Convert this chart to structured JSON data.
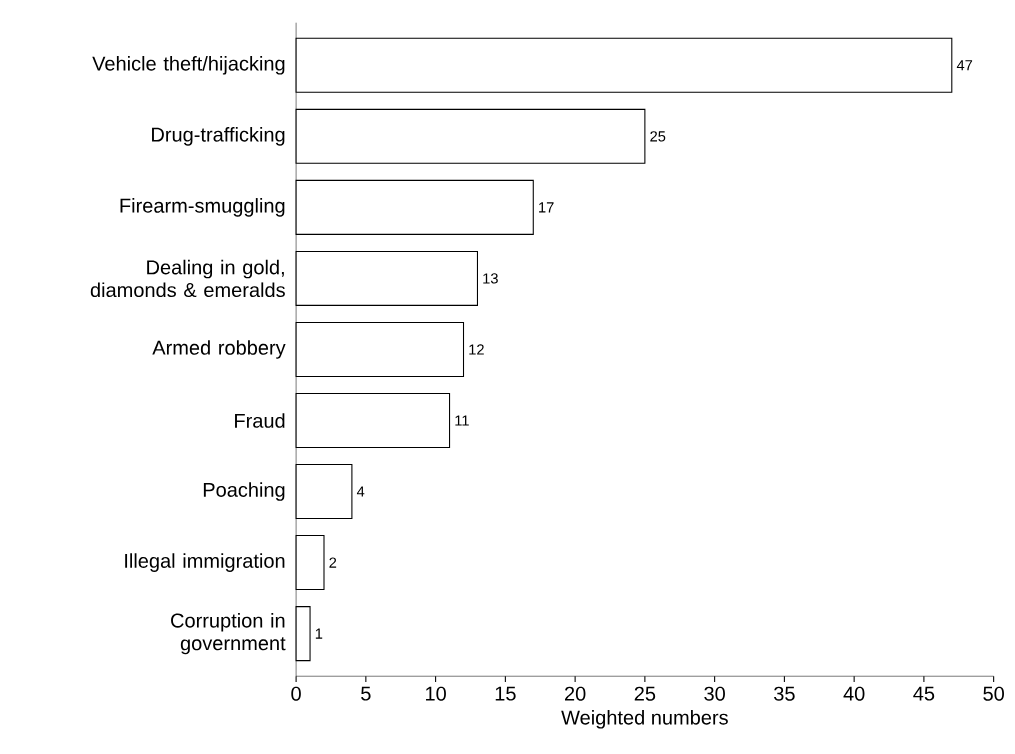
{
  "chart_data": {
    "type": "bar",
    "orientation": "horizontal",
    "xlabel": "Weighted numbers",
    "categories": [
      "Vehicle theft/hijacking",
      "Drug-trafficking",
      "Firearm-smuggling",
      "Dealing in gold, diamonds & emeralds",
      "Armed robbery",
      "Fraud",
      "Poaching",
      "Illegal immigration",
      "Corruption in government"
    ],
    "values": [
      47,
      25,
      17,
      13,
      12,
      11,
      4,
      2,
      1
    ],
    "color": "#ffffff",
    "xlim": [
      0,
      50
    ],
    "xticks": [
      0,
      5,
      10,
      15,
      20,
      25,
      30,
      35,
      40,
      45,
      50
    ],
    "data_labels": true
  }
}
